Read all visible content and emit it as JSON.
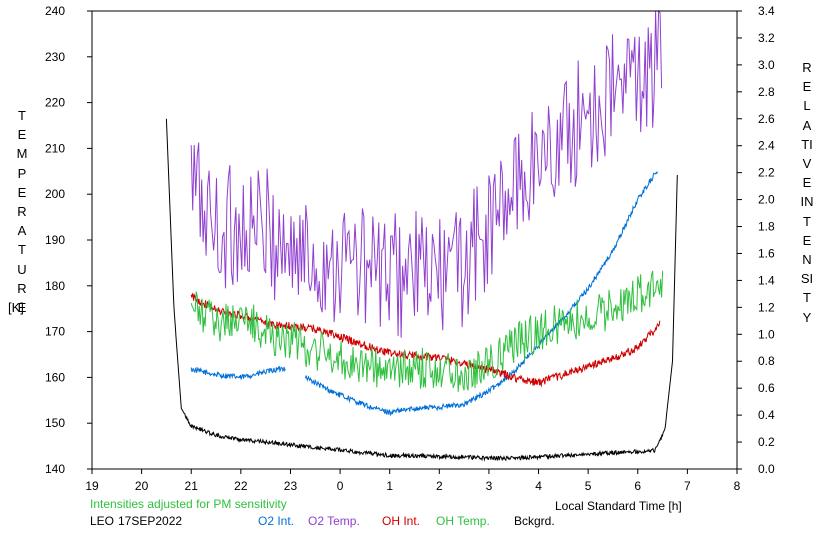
{
  "chart_data": {
    "type": "line",
    "station": "LEO",
    "date": "17SEP2022",
    "note": "Intensities adjusted for PM sensitivity",
    "xlabel": "Local Standard Time [h]",
    "ylabel_left": "TEMPERATURE",
    "ylabel_left_unit": "[K]",
    "ylabel_right": "RELATIVE INTENSITY",
    "x_ticks": [
      "19",
      "20",
      "21",
      "22",
      "23",
      "0",
      "1",
      "2",
      "3",
      "4",
      "5",
      "6",
      "7",
      "8"
    ],
    "x_range": [
      19,
      32
    ],
    "y_left_ticks": [
      "140",
      "150",
      "160",
      "170",
      "180",
      "190",
      "200",
      "210",
      "220",
      "230",
      "240"
    ],
    "y_left_range": [
      140,
      240
    ],
    "y_right_ticks": [
      "0.0",
      "0.2",
      "0.4",
      "0.6",
      "0.8",
      "1.0",
      "1.2",
      "1.4",
      "1.6",
      "1.8",
      "2.0",
      "2.2",
      "2.4",
      "2.6",
      "2.8",
      "3.0",
      "3.2",
      "3.4"
    ],
    "y_right_range": [
      0.0,
      3.4
    ],
    "series": [
      {
        "name": "O2 Int.",
        "color": "#0070d8",
        "axis": "right",
        "x": [
          21.0,
          21.5,
          22.0,
          22.5,
          23.0,
          23.4,
          23.8,
          24.2,
          24.6,
          25.0,
          25.5,
          26.0,
          26.5,
          27.0,
          27.5,
          28.0,
          28.5,
          29.0,
          29.5,
          30.0,
          30.4
        ],
        "y": [
          0.74,
          0.7,
          0.68,
          0.72,
          0.76,
          0.66,
          0.58,
          0.52,
          0.46,
          0.42,
          0.45,
          0.46,
          0.48,
          0.58,
          0.72,
          0.92,
          1.12,
          1.34,
          1.62,
          2.0,
          2.22
        ],
        "gap": [
          22.9,
          23.3
        ]
      },
      {
        "name": "O2 Temp.",
        "color": "#9040d0",
        "axis": "left",
        "x": [
          21.0,
          21.5,
          22.0,
          22.5,
          23.0,
          23.5,
          24.0,
          24.5,
          25.0,
          25.5,
          26.0,
          26.5,
          27.0,
          27.5,
          28.0,
          28.5,
          29.0,
          29.5,
          30.0,
          30.5
        ],
        "y": [
          203,
          192,
          193,
          192,
          188,
          185,
          186,
          184,
          182,
          183,
          182,
          185,
          192,
          201,
          208,
          212,
          218,
          222,
          226,
          228
        ]
      },
      {
        "name": "OH Int.",
        "color": "#d00000",
        "axis": "right",
        "x": [
          21.0,
          21.5,
          22.0,
          22.5,
          23.0,
          23.5,
          24.0,
          24.5,
          25.0,
          25.5,
          26.0,
          26.5,
          27.0,
          27.5,
          28.0,
          28.5,
          29.0,
          29.5,
          30.0,
          30.45
        ],
        "y": [
          1.28,
          1.18,
          1.14,
          1.08,
          1.06,
          1.04,
          0.98,
          0.92,
          0.86,
          0.84,
          0.83,
          0.78,
          0.74,
          0.68,
          0.64,
          0.7,
          0.76,
          0.82,
          0.9,
          1.08
        ]
      },
      {
        "name": "OH Temp.",
        "color": "#30c040",
        "axis": "left",
        "x": [
          21.0,
          21.5,
          22.0,
          22.5,
          23.0,
          23.5,
          24.0,
          24.5,
          25.0,
          25.5,
          26.0,
          26.5,
          27.0,
          27.5,
          28.0,
          28.5,
          29.0,
          29.5,
          30.0,
          30.5
        ],
        "y": [
          175,
          172,
          173,
          170,
          168,
          166,
          164,
          163,
          161,
          162,
          162,
          161,
          163,
          167,
          170,
          172,
          173,
          175,
          178,
          180
        ]
      },
      {
        "name": "Bckgrd.",
        "color": "#000000",
        "axis": "right",
        "x": [
          20.5,
          20.65,
          20.8,
          21.0,
          21.5,
          22.0,
          22.5,
          23.0,
          23.5,
          24.0,
          24.5,
          25.0,
          25.5,
          26.0,
          26.5,
          27.0,
          27.5,
          28.0,
          28.5,
          29.0,
          29.5,
          30.0,
          30.35,
          30.55,
          30.7,
          30.8
        ],
        "y": [
          2.6,
          1.2,
          0.45,
          0.32,
          0.25,
          0.22,
          0.2,
          0.18,
          0.16,
          0.14,
          0.12,
          0.1,
          0.1,
          0.09,
          0.09,
          0.08,
          0.08,
          0.09,
          0.1,
          0.11,
          0.12,
          0.13,
          0.14,
          0.3,
          0.8,
          2.24
        ]
      }
    ],
    "grid": false,
    "legend_placement": "bottom"
  }
}
